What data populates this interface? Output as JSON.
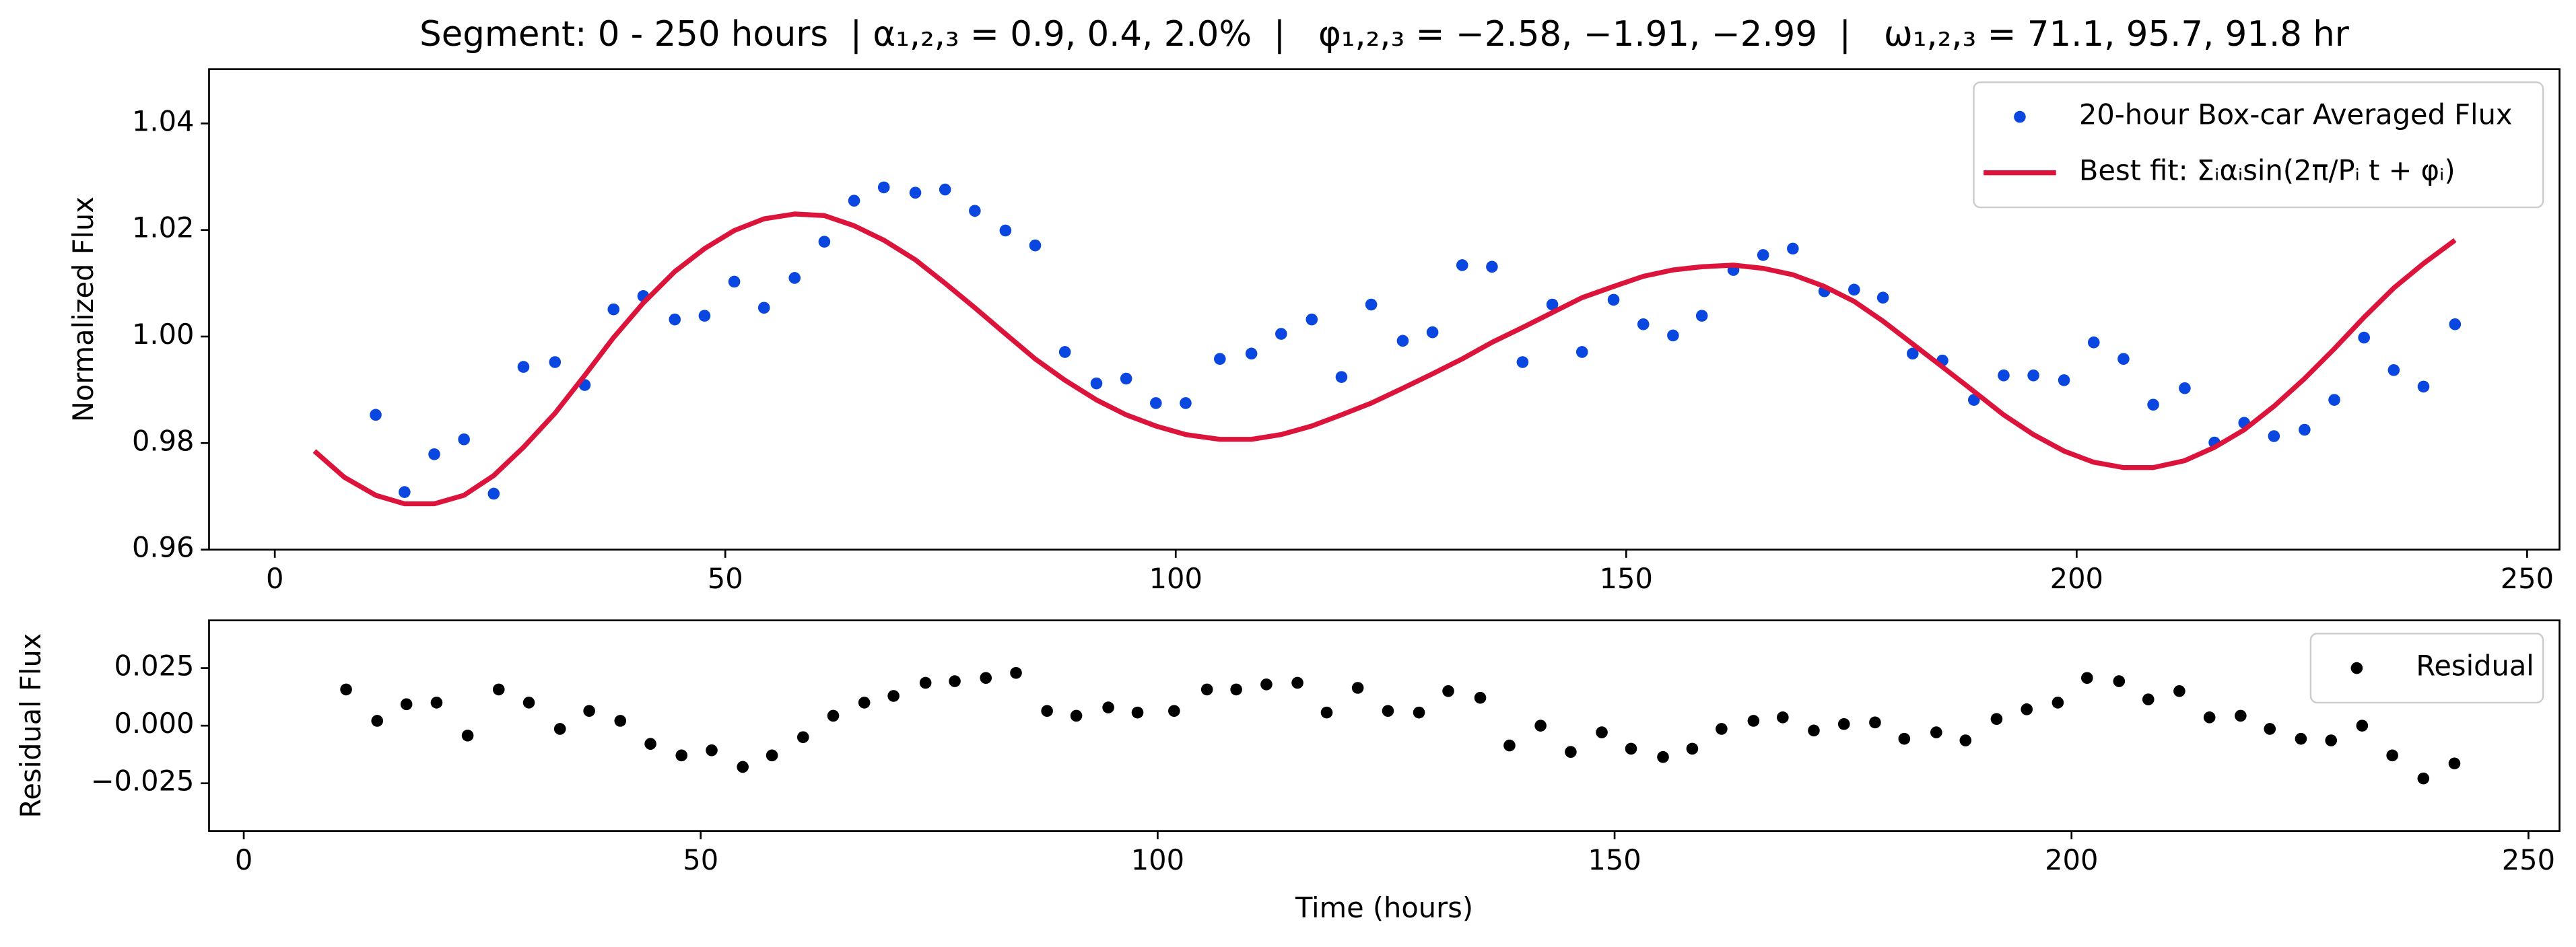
{
  "chart_data": [
    {
      "type": "scatter",
      "title": "Segment: 0 - 250 hours  | α₁,₂,₃ = 0.9, 0.4, 2.0%  |   φ₁,₂,₃ = −2.58, −1.91, −2.99  |   ω₁,₂,₃ = 71.1, 95.7, 91.8 hr",
      "ylabel": "Normalized Flux",
      "xlim": [
        -7.3,
        253.6
      ],
      "ylim": [
        0.96,
        1.0502
      ],
      "xticks": [
        0,
        50,
        100,
        150,
        200,
        250
      ],
      "yticks": [
        0.96,
        0.98,
        {
          "value": 1,
          "label": "1.00"
        },
        1.02,
        1.04
      ],
      "legend": "upper right",
      "series": [
        {
          "name": "20-hour Box-car Averaged Flux",
          "color": "#0a46e0",
          "type": "scatter",
          "x": [
            11.2,
            14.4,
            17.7,
            21.0,
            24.3,
            27.6,
            31.1,
            34.4,
            37.6,
            40.9,
            44.4,
            47.7,
            51.0,
            54.3,
            57.7,
            61.0,
            64.3,
            67.6,
            71.1,
            74.4,
            77.7,
            81.1,
            84.4,
            87.7,
            91.2,
            94.5,
            97.8,
            101.1,
            104.9,
            108.4,
            111.7,
            115.1,
            118.4,
            121.7,
            125.2,
            128.5,
            131.8,
            135.1,
            138.5,
            141.8,
            145.1,
            148.6,
            151.9,
            155.2,
            158.4,
            161.9,
            165.2,
            168.5,
            172.0,
            175.3,
            178.5,
            181.8,
            185.1,
            188.6,
            191.9,
            195.2,
            198.6,
            201.9,
            205.2,
            208.5,
            212.0,
            215.3,
            218.6,
            221.9,
            225.3,
            228.6,
            231.9,
            235.2,
            238.5,
            242.0
          ],
          "values": [
            0.9853,
            0.9708,
            0.9779,
            0.9807,
            0.9705,
            0.9943,
            0.9952,
            0.9909,
            1.0051,
            1.0076,
            1.0032,
            1.0039,
            1.0103,
            1.0054,
            1.011,
            1.0178,
            1.0255,
            1.028,
            1.027,
            1.0276,
            1.0236,
            1.0199,
            1.0171,
            0.9971,
            0.9912,
            0.9921,
            0.9875,
            0.9875,
            0.9958,
            0.9968,
            1.0005,
            1.0032,
            0.9924,
            1.006,
            0.9992,
            1.0008,
            1.0134,
            1.0131,
            0.9952,
            1.006,
            0.9971,
            1.0069,
            1.0023,
            1.0002,
            1.0039,
            1.0125,
            1.0153,
            1.0165,
            1.0085,
            1.0088,
            1.0073,
            0.9968,
            0.9955,
            0.9881,
            0.9927,
            0.9927,
            0.9918,
            0.9989,
            0.9958,
            0.9872,
            0.9903,
            0.9801,
            0.9838,
            0.9813,
            0.9825,
            0.9881,
            0.9998,
            0.9937,
            0.9906,
            1.0023
          ]
        },
        {
          "name": "Best fit: Σᵢαᵢsin(2π/Pᵢ t + φᵢ)",
          "color": "#dc143c",
          "type": "line",
          "x": [
            4.4,
            7.7,
            11.2,
            14.4,
            17.7,
            21.0,
            24.3,
            27.6,
            31.1,
            34.4,
            37.6,
            40.9,
            44.4,
            47.7,
            51.0,
            54.3,
            57.7,
            61.0,
            64.3,
            67.6,
            71.1,
            74.4,
            77.7,
            81.1,
            84.4,
            87.7,
            91.2,
            94.5,
            97.8,
            101.1,
            104.9,
            108.4,
            111.7,
            115.1,
            118.4,
            121.7,
            125.2,
            128.5,
            131.8,
            135.1,
            138.5,
            141.8,
            145.1,
            148.6,
            151.9,
            155.2,
            158.4,
            161.9,
            165.2,
            168.5,
            172.0,
            175.3,
            178.5,
            181.8,
            185.1,
            188.6,
            191.9,
            195.2,
            198.6,
            201.9,
            205.2,
            208.5,
            212.0,
            215.3,
            218.6,
            221.9,
            225.3,
            228.6,
            231.9,
            235.2,
            238.5,
            242.0
          ],
          "values": [
            0.9785,
            0.9736,
            0.9702,
            0.9686,
            0.9686,
            0.9702,
            0.9739,
            0.9792,
            0.9856,
            0.9927,
            0.9998,
            1.0063,
            1.0122,
            1.0165,
            1.0199,
            1.0221,
            1.023,
            1.0227,
            1.0208,
            1.0181,
            1.0144,
            1.01,
            1.0054,
            1.0005,
            0.9958,
            0.9918,
            0.9881,
            0.9853,
            0.9832,
            0.9816,
            0.9807,
            0.9807,
            0.9816,
            0.9832,
            0.9853,
            0.9875,
            0.9903,
            0.993,
            0.9958,
            0.9989,
            1.0017,
            1.0045,
            1.0073,
            1.0094,
            1.0113,
            1.0125,
            1.0131,
            1.0134,
            1.0128,
            1.0116,
            1.0094,
            1.0066,
            1.0029,
            0.9986,
            0.9943,
            0.9897,
            0.9853,
            0.9816,
            0.9785,
            0.9764,
            0.9754,
            0.9754,
            0.9767,
            0.9792,
            0.9825,
            0.9869,
            0.9921,
            0.9977,
            1.0036,
            1.0091,
            1.0137,
            1.0181
          ]
        }
      ]
    },
    {
      "type": "scatter",
      "xlabel": "Time (hours)",
      "ylabel": "Residual Flux",
      "xlim": [
        -3.8,
        253.4
      ],
      "ylim": [
        -0.0457,
        0.0457
      ],
      "xticks": [
        0,
        50,
        100,
        150,
        200,
        250
      ],
      "yticks": [
        {
          "value": -0.025,
          "label": "−0.025"
        },
        {
          "value": 0,
          "label": "0.000"
        },
        0.025
      ],
      "legend": "upper right",
      "series": [
        {
          "name": "Residual",
          "color": "#000000",
          "type": "scatter",
          "x": [
            11.2,
            14.6,
            17.8,
            21.1,
            24.5,
            27.9,
            31.2,
            34.6,
            37.8,
            41.2,
            44.5,
            47.9,
            51.2,
            54.6,
            57.8,
            61.2,
            64.5,
            67.9,
            71.1,
            74.6,
            77.8,
            81.2,
            84.5,
            87.9,
            91.1,
            94.6,
            97.8,
            101.8,
            105.4,
            108.6,
            111.9,
            115.3,
            118.5,
            121.9,
            125.2,
            128.6,
            131.8,
            135.3,
            138.5,
            141.9,
            145.2,
            148.6,
            151.8,
            155.3,
            158.5,
            161.7,
            165.2,
            168.4,
            171.8,
            175.1,
            178.5,
            181.7,
            185.2,
            188.4,
            191.8,
            195.1,
            198.5,
            201.7,
            205.2,
            208.4,
            211.8,
            215.1,
            218.5,
            221.7,
            225.1,
            228.4,
            231.8,
            235.1,
            238.5,
            241.9
          ],
          "values": [
            0.0157,
            0.0021,
            0.0093,
            0.01,
            -0.0043,
            0.0157,
            0.01,
            -0.0014,
            0.0064,
            0.0021,
            -0.0079,
            -0.0129,
            -0.0107,
            -0.0179,
            -0.0129,
            -0.005,
            0.0043,
            0.01,
            0.0129,
            0.0186,
            0.0193,
            0.0207,
            0.0229,
            0.0064,
            0.0043,
            0.0079,
            0.0057,
            0.0064,
            0.0157,
            0.0157,
            0.0179,
            0.0186,
            0.0057,
            0.0164,
            0.0064,
            0.0057,
            0.015,
            0.0121,
            -0.0086,
            0.0,
            -0.0114,
            -0.0029,
            -0.01,
            -0.0136,
            -0.01,
            -0.0014,
            0.0021,
            0.0036,
            -0.0021,
            0.0007,
            0.0014,
            -0.0057,
            -0.0029,
            -0.0064,
            0.0029,
            0.0071,
            0.01,
            0.0207,
            0.0193,
            0.0114,
            0.015,
            0.0036,
            0.0043,
            -0.0014,
            -0.0057,
            -0.0064,
            0.0,
            -0.0129,
            -0.0229,
            -0.0164
          ]
        }
      ]
    }
  ]
}
